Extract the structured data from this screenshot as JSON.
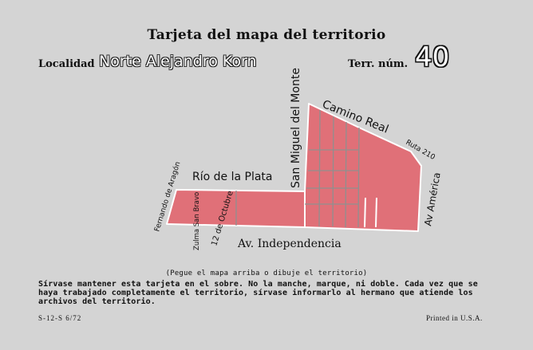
{
  "card": {
    "title": "Tarjeta del mapa del territorio",
    "locality_label": "Localidad",
    "locality_value": "Norte Alejandro Korn",
    "terr_label": "Terr. núm.",
    "terr_number": "40"
  },
  "map": {
    "fill_color": "#e07078",
    "stroke_color": "#ffffff",
    "grid_color": "#8f8f8f",
    "streets": {
      "camino_real": "Camino Real",
      "ruta_210": "Ruta 210",
      "san_miguel": "San Miguel del Monte",
      "rio_de_la_plata": "Río de la Plata",
      "fernando_aragon": "Fernando de Aragón",
      "zulma": "Zulma San Bravo",
      "doce_octubre": "12 de Octubre",
      "av_independencia": "Av. Independencia",
      "av_america": "Av América"
    }
  },
  "footer": {
    "paste_note": "(Pegue el mapa arriba o dibuje el territorio)",
    "instructions": "Sírvase mantener esta tarjeta en el sobre. No la manche, marque, ni doble. Cada vez que se haya trabajado completamente el territorio, sírvase informarlo al hermano que atiende los archivos del territorio.",
    "form_code": "S-12-S      6/72",
    "printed": "Printed in U.S.A."
  }
}
